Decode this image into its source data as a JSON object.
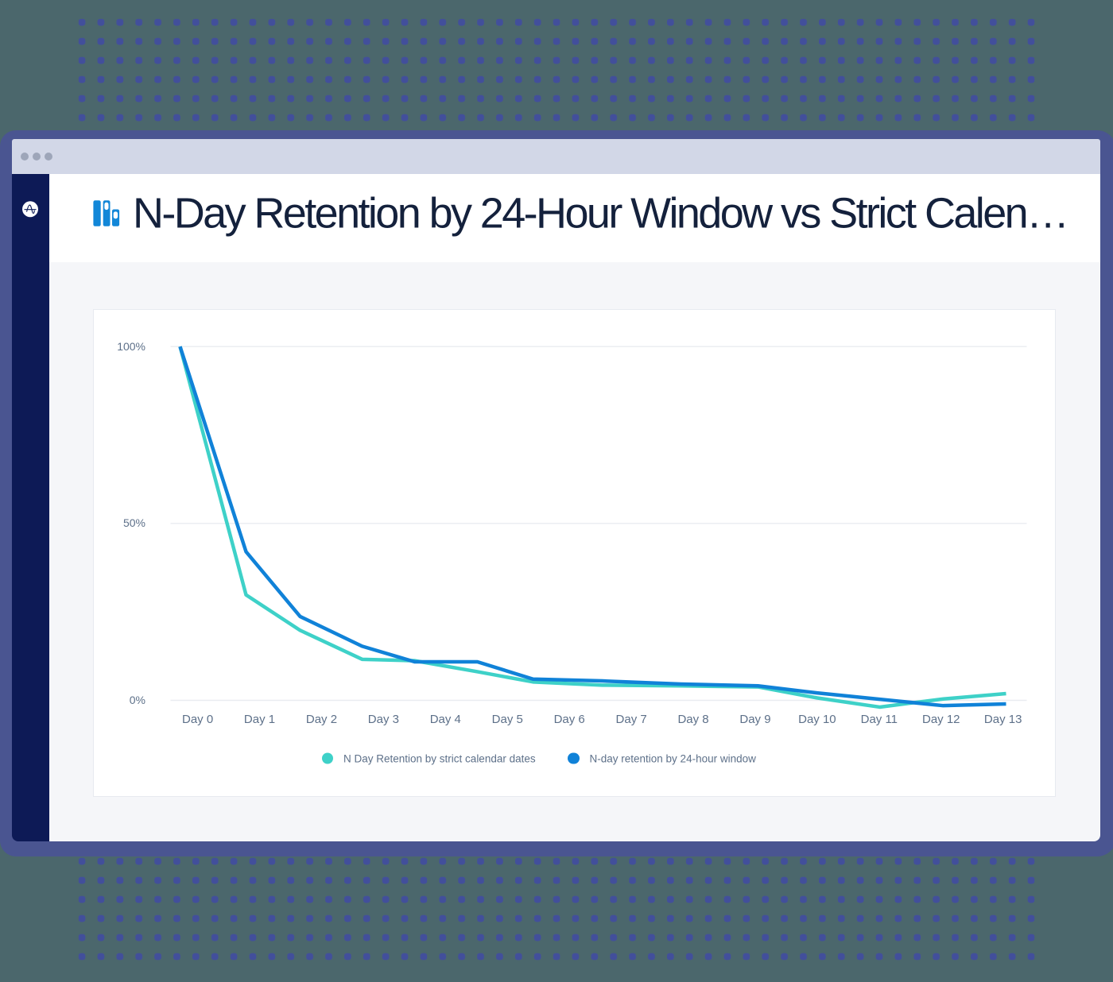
{
  "header": {
    "title": "N-Day Retention by 24-Hour Window vs Strict Calen…"
  },
  "chart_data": {
    "type": "line",
    "title": "N-Day Retention by 24-Hour Window vs Strict Calen…",
    "categories": [
      "Day 0",
      "Day 1",
      "Day 2",
      "Day 3",
      "Day 4",
      "Day 5",
      "Day 6",
      "Day 7",
      "Day 8",
      "Day 9",
      "Day 10",
      "Day 11",
      "Day 12",
      "Day 13"
    ],
    "series": [
      {
        "name": "N Day Retention by strict calendar dates",
        "color": "#3ed1c8",
        "values": [
          100,
          29.8,
          19.8,
          11.6,
          11.2,
          8.1,
          5.2,
          4.3,
          4.1,
          3.8,
          0.7,
          -1.9,
          0.4,
          1.9
        ]
      },
      {
        "name": "N-day retention by 24-hour window",
        "color": "#1082d8",
        "values": [
          100,
          42,
          23.7,
          15.3,
          10.9,
          10.9,
          6,
          5.5,
          4.6,
          4.1,
          2.1,
          0.3,
          -1.5,
          -1
        ]
      }
    ],
    "y_unit": "%",
    "yticks": [
      {
        "label": "100%",
        "value": 100
      },
      {
        "label": "50%",
        "value": 50
      },
      {
        "label": "0%",
        "value": 0
      }
    ],
    "grid": "horizontal",
    "legend_position": "bottom"
  },
  "colors": {
    "background": "#4b676c",
    "dot_pattern": "#424f9b",
    "window_frame": "#4a5591",
    "titlebar": "#d2d7e7",
    "sidebar": "#0d1a56",
    "header_bg": "#ffffff",
    "title_text": "#14213c",
    "content_bg": "#f5f6f9",
    "axis_text": "#5d7089",
    "gridline": "#eaecf1"
  }
}
